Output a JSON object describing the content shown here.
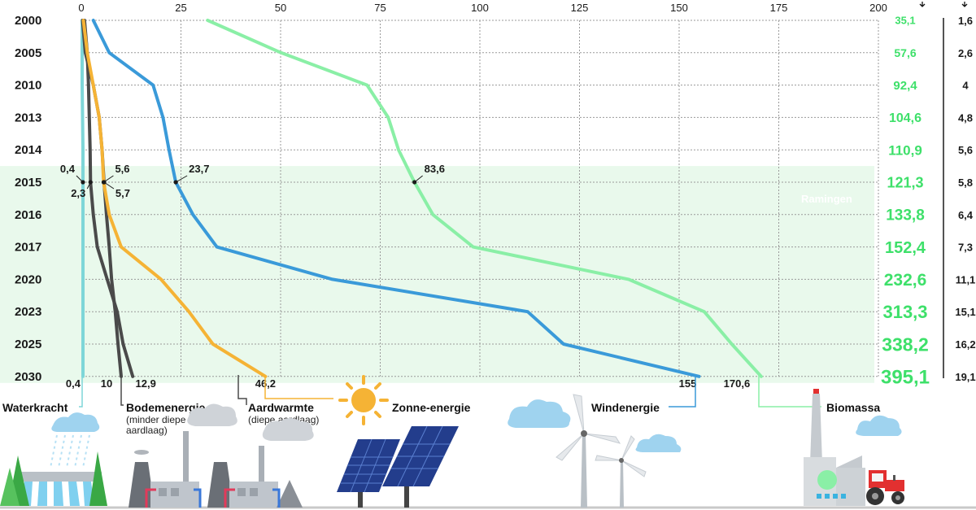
{
  "chart_data": {
    "type": "line",
    "x_axis_ticks": [
      "0",
      "25",
      "50",
      "75",
      "100",
      "125",
      "150",
      "175",
      "200"
    ],
    "xlim": [
      0,
      200
    ],
    "grid": true,
    "categories": [
      "2000",
      "2005",
      "2010",
      "2013",
      "2014",
      "2015",
      "2016",
      "2017",
      "2020",
      "2023",
      "2025",
      "2030"
    ],
    "projection_label": "Ramingen",
    "projection_start": "2015",
    "series": [
      {
        "name": "Waterkracht",
        "color": "#7ed6d8",
        "values": [
          0.2,
          0.2,
          0.2,
          0.3,
          0.4,
          0.4,
          0.4,
          0.4,
          0.4,
          0.4,
          0.4,
          0.4
        ]
      },
      {
        "name": "Bodemenergie",
        "color": "#4a4a4a",
        "values": [
          0.8,
          1.5,
          1.8,
          2.0,
          2.2,
          2.3,
          3.0,
          4.0,
          6.5,
          9.0,
          10.5,
          12.9
        ]
      },
      {
        "name": "Bodemenergie-2",
        "color": "#4a4a4a",
        "values": [
          0.3,
          1.0,
          3.0,
          4.5,
          5.2,
          5.7,
          6.3,
          7.0,
          7.6,
          8.5,
          9.2,
          10.0
        ]
      },
      {
        "name": "Aardwarmte",
        "color": "#f5b335",
        "values": [
          0.5,
          1.5,
          3.0,
          4.5,
          5.2,
          5.6,
          7.0,
          10.0,
          20.0,
          27.0,
          33.0,
          46.2
        ]
      },
      {
        "name": "Windenergie",
        "color": "#3a9ad9",
        "values": [
          3.0,
          7.0,
          18.0,
          20.5,
          22.0,
          23.7,
          28.0,
          34.0,
          63.0,
          112.0,
          121.0,
          155.0
        ]
      },
      {
        "name": "Biomassa",
        "color": "#8aefa6",
        "values": [
          31.7,
          50.1,
          71.7,
          77.0,
          79.6,
          83.6,
          88.2,
          98.3,
          137.3,
          156.3,
          163.2,
          170.6
        ]
      }
    ],
    "point_labels": [
      {
        "series": "Waterkracht",
        "category": "2015",
        "text": "0,4"
      },
      {
        "series": "Bodemenergie",
        "category": "2015",
        "text": "2,3"
      },
      {
        "series": "Aardwarmte",
        "category": "2015",
        "text": "5,6"
      },
      {
        "series": "Bodemenergie-2",
        "category": "2015",
        "text": "5,7"
      },
      {
        "series": "Windenergie",
        "category": "2015",
        "text": "23,7"
      },
      {
        "series": "Biomassa",
        "category": "2015",
        "text": "83,6"
      }
    ],
    "end_labels": [
      {
        "series": "Waterkracht",
        "text": "0,4"
      },
      {
        "series": "Bodemenergie-2",
        "text": "10"
      },
      {
        "series": "Bodemenergie",
        "text": "12,9"
      },
      {
        "series": "Aardwarmte",
        "text": "46,2"
      },
      {
        "series": "Windenergie",
        "text": "155"
      },
      {
        "series": "Biomassa",
        "text": "170,6"
      }
    ],
    "totals": [
      "35,1",
      "57,6",
      "92,4",
      "104,6",
      "110,9",
      "121,3",
      "133,8",
      "152,4",
      "232,6",
      "313,3",
      "338,2",
      "395,1"
    ],
    "percentages": [
      "1,6",
      "2,6",
      "4",
      "4,8",
      "5,6",
      "5,8",
      "6,4",
      "7,3",
      "11,1",
      "15,1",
      "16,2",
      "19,1"
    ]
  },
  "sources": {
    "waterkracht": "Waterkracht",
    "bodemenergie": "Bodemenergie",
    "bodemenergie_sub1": "(minder diepe",
    "bodemenergie_sub2": "aardlaag)",
    "aardwarmte": "Aardwarmte",
    "aardwarmte_sub": "(diepe aardlaag)",
    "zonne": "Zonne-energie",
    "wind": "Windenergie",
    "biomassa": "Biomassa"
  },
  "colors": {
    "projection_band": "#e9f9ec",
    "grid": "#9a9a9a",
    "totals": "#3ee06a",
    "cloud": "#9fd3ef",
    "sun": "#f5b335",
    "solar_panel": "#233d8c",
    "factory": "#8a8f96",
    "tractor": "#e23030"
  },
  "icons": [
    "waterfall-dam-icon",
    "factory-icon",
    "sun-icon",
    "solar-panel-icon",
    "wind-turbine-icon",
    "cloud-icon",
    "biomass-plant-icon",
    "tractor-icon"
  ]
}
